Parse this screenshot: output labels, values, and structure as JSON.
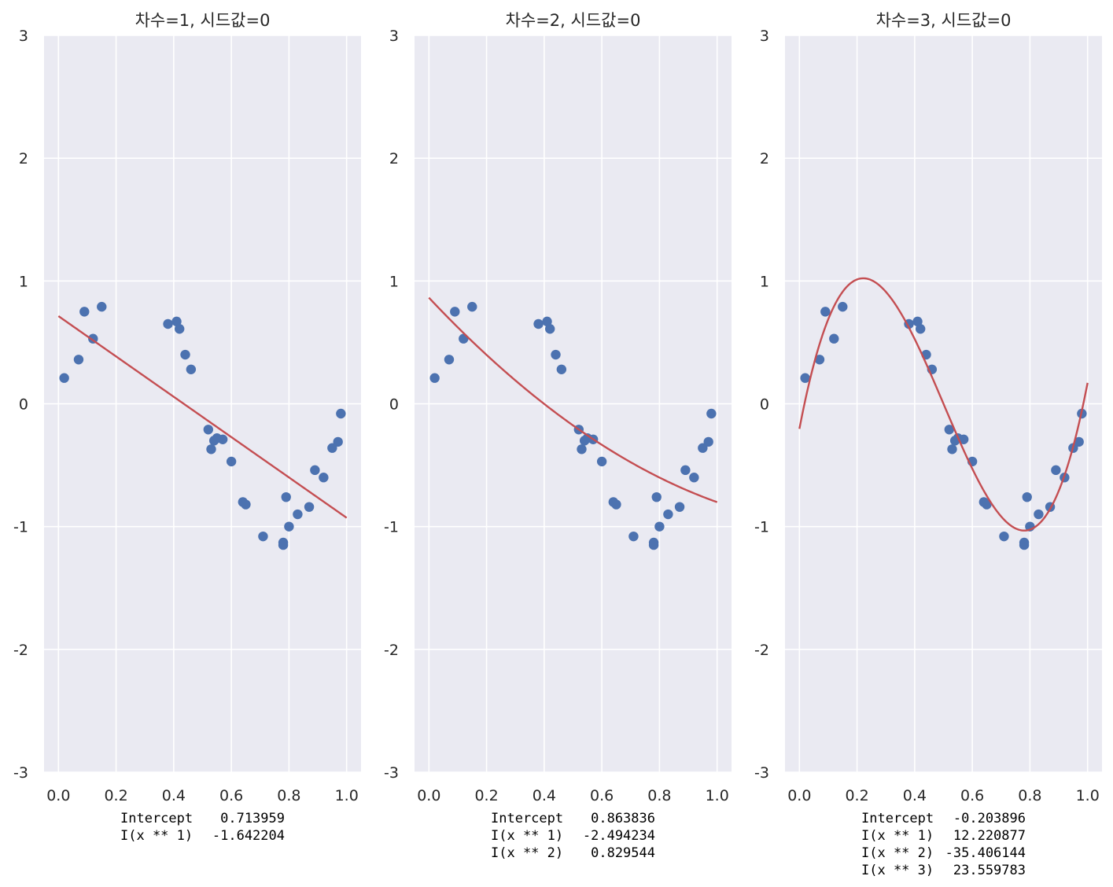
{
  "colors": {
    "axes_background": "#eaeaf2",
    "grid": "#ffffff",
    "points": "#4c72b0",
    "fit_line": "#c44e52",
    "text": "#262626"
  },
  "chart_data": [
    {
      "type": "scatter",
      "title": "차수=1, 시드값=0",
      "degree": 1,
      "xlim": [
        -0.05,
        1.05
      ],
      "ylim": [
        -3,
        3
      ],
      "xticks": [
        "0.0",
        "0.2",
        "0.4",
        "0.6",
        "0.8",
        "1.0"
      ],
      "yticks": [
        "-3",
        "-2",
        "-1",
        "0",
        "1",
        "2",
        "3"
      ],
      "grid": true,
      "series": [
        {
          "kind": "scatter",
          "x": [
            0.02,
            0.07,
            0.09,
            0.12,
            0.15,
            0.38,
            0.41,
            0.42,
            0.44,
            0.46,
            0.52,
            0.53,
            0.54,
            0.55,
            0.57,
            0.6,
            0.64,
            0.65,
            0.71,
            0.78,
            0.78,
            0.79,
            0.8,
            0.83,
            0.87,
            0.89,
            0.92,
            0.95,
            0.97,
            0.98
          ],
          "y": [
            0.21,
            0.36,
            0.75,
            0.53,
            0.79,
            0.65,
            0.67,
            0.61,
            0.4,
            0.28,
            -0.21,
            -0.37,
            -0.3,
            -0.28,
            -0.29,
            -0.47,
            -0.8,
            -0.82,
            -1.08,
            -1.13,
            -1.15,
            -0.76,
            -1.0,
            -0.9,
            -0.84,
            -0.54,
            -0.6,
            -0.36,
            -0.31,
            -0.08
          ]
        },
        {
          "kind": "fit",
          "coefficients": [
            0.713959,
            -1.642204
          ]
        }
      ],
      "annotation_rows": [
        {
          "term": "Intercept",
          "value": "0.713959"
        },
        {
          "term": "I(x ** 1)",
          "value": "-1.642204"
        }
      ]
    },
    {
      "type": "scatter",
      "title": "차수=2, 시드값=0",
      "degree": 2,
      "xlim": [
        -0.05,
        1.05
      ],
      "ylim": [
        -3,
        3
      ],
      "xticks": [
        "0.0",
        "0.2",
        "0.4",
        "0.6",
        "0.8",
        "1.0"
      ],
      "yticks": [
        "-3",
        "-2",
        "-1",
        "0",
        "1",
        "2",
        "3"
      ],
      "grid": true,
      "series": [
        {
          "kind": "scatter",
          "x": [
            0.02,
            0.07,
            0.09,
            0.12,
            0.15,
            0.38,
            0.41,
            0.42,
            0.44,
            0.46,
            0.52,
            0.53,
            0.54,
            0.55,
            0.57,
            0.6,
            0.64,
            0.65,
            0.71,
            0.78,
            0.78,
            0.79,
            0.8,
            0.83,
            0.87,
            0.89,
            0.92,
            0.95,
            0.97,
            0.98
          ],
          "y": [
            0.21,
            0.36,
            0.75,
            0.53,
            0.79,
            0.65,
            0.67,
            0.61,
            0.4,
            0.28,
            -0.21,
            -0.37,
            -0.3,
            -0.28,
            -0.29,
            -0.47,
            -0.8,
            -0.82,
            -1.08,
            -1.13,
            -1.15,
            -0.76,
            -1.0,
            -0.9,
            -0.84,
            -0.54,
            -0.6,
            -0.36,
            -0.31,
            -0.08
          ]
        },
        {
          "kind": "fit",
          "coefficients": [
            0.863836,
            -2.494234,
            0.829544
          ]
        }
      ],
      "annotation_rows": [
        {
          "term": "Intercept",
          "value": "0.863836"
        },
        {
          "term": "I(x ** 1)",
          "value": "-2.494234"
        },
        {
          "term": "I(x ** 2)",
          "value": "0.829544"
        }
      ]
    },
    {
      "type": "scatter",
      "title": "차수=3, 시드값=0",
      "degree": 3,
      "xlim": [
        -0.05,
        1.05
      ],
      "ylim": [
        -3,
        3
      ],
      "xticks": [
        "0.0",
        "0.2",
        "0.4",
        "0.6",
        "0.8",
        "1.0"
      ],
      "yticks": [
        "-3",
        "-2",
        "-1",
        "0",
        "1",
        "2",
        "3"
      ],
      "grid": true,
      "series": [
        {
          "kind": "scatter",
          "x": [
            0.02,
            0.07,
            0.09,
            0.12,
            0.15,
            0.38,
            0.41,
            0.42,
            0.44,
            0.46,
            0.52,
            0.53,
            0.54,
            0.55,
            0.57,
            0.6,
            0.64,
            0.65,
            0.71,
            0.78,
            0.78,
            0.79,
            0.8,
            0.83,
            0.87,
            0.89,
            0.92,
            0.95,
            0.97,
            0.98
          ],
          "y": [
            0.21,
            0.36,
            0.75,
            0.53,
            0.79,
            0.65,
            0.67,
            0.61,
            0.4,
            0.28,
            -0.21,
            -0.37,
            -0.3,
            -0.28,
            -0.29,
            -0.47,
            -0.8,
            -0.82,
            -1.08,
            -1.13,
            -1.15,
            -0.76,
            -1.0,
            -0.9,
            -0.84,
            -0.54,
            -0.6,
            -0.36,
            -0.31,
            -0.08
          ]
        },
        {
          "kind": "fit",
          "coefficients": [
            -0.203896,
            12.220877,
            -35.406144,
            23.559783
          ]
        }
      ],
      "annotation_rows": [
        {
          "term": "Intercept",
          "value": "-0.203896"
        },
        {
          "term": "I(x ** 1)",
          "value": "12.220877"
        },
        {
          "term": "I(x ** 2)",
          "value": "-35.406144"
        },
        {
          "term": "I(x ** 3)",
          "value": "23.559783"
        }
      ]
    }
  ]
}
